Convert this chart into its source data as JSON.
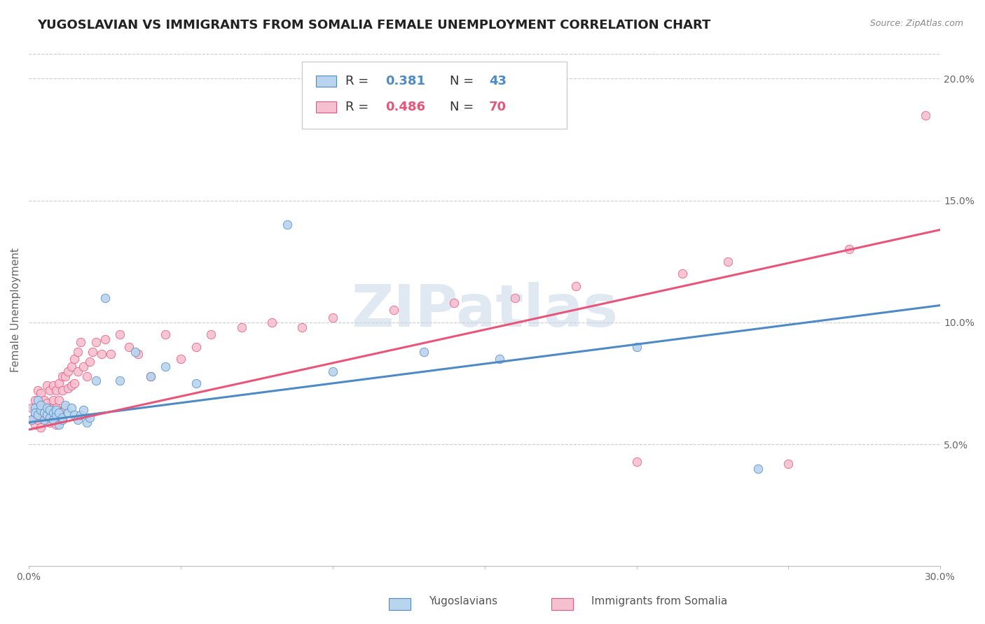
{
  "title": "YUGOSLAVIAN VS IMMIGRANTS FROM SOMALIA FEMALE UNEMPLOYMENT CORRELATION CHART",
  "source": "Source: ZipAtlas.com",
  "ylabel": "Female Unemployment",
  "xlim": [
    0.0,
    0.3
  ],
  "ylim": [
    0.0,
    0.21
  ],
  "x_ticks": [
    0.0,
    0.05,
    0.1,
    0.15,
    0.2,
    0.25,
    0.3
  ],
  "y_ticks_right": [
    0.05,
    0.1,
    0.15,
    0.2
  ],
  "y_tick_labels_right": [
    "5.0%",
    "10.0%",
    "15.0%",
    "20.0%"
  ],
  "watermark": "ZIPatlas",
  "bottom_labels": [
    "Yugoslavians",
    "Immigrants from Somalia"
  ],
  "blue_color": "#4e8ac4",
  "pink_color": "#e8557a",
  "blue_scatter_color": "#b8d4ee",
  "pink_scatter_color": "#f5c0d0",
  "blue_scatter_x": [
    0.001,
    0.002,
    0.002,
    0.003,
    0.003,
    0.004,
    0.004,
    0.005,
    0.005,
    0.006,
    0.006,
    0.007,
    0.007,
    0.008,
    0.008,
    0.009,
    0.009,
    0.01,
    0.01,
    0.011,
    0.011,
    0.012,
    0.013,
    0.014,
    0.015,
    0.016,
    0.017,
    0.018,
    0.019,
    0.02,
    0.022,
    0.025,
    0.03,
    0.035,
    0.04,
    0.045,
    0.055,
    0.085,
    0.1,
    0.13,
    0.155,
    0.2,
    0.24
  ],
  "blue_scatter_y": [
    0.06,
    0.065,
    0.063,
    0.068,
    0.062,
    0.064,
    0.066,
    0.06,
    0.063,
    0.062,
    0.065,
    0.061,
    0.064,
    0.063,
    0.06,
    0.062,
    0.064,
    0.063,
    0.058,
    0.06,
    0.061,
    0.066,
    0.063,
    0.065,
    0.062,
    0.06,
    0.062,
    0.064,
    0.059,
    0.061,
    0.076,
    0.11,
    0.076,
    0.088,
    0.078,
    0.082,
    0.075,
    0.14,
    0.08,
    0.088,
    0.085,
    0.09,
    0.04
  ],
  "pink_scatter_x": [
    0.001,
    0.001,
    0.002,
    0.002,
    0.002,
    0.003,
    0.003,
    0.003,
    0.004,
    0.004,
    0.004,
    0.005,
    0.005,
    0.006,
    0.006,
    0.006,
    0.007,
    0.007,
    0.007,
    0.008,
    0.008,
    0.009,
    0.009,
    0.009,
    0.01,
    0.01,
    0.01,
    0.011,
    0.011,
    0.012,
    0.012,
    0.013,
    0.013,
    0.014,
    0.014,
    0.015,
    0.015,
    0.016,
    0.016,
    0.017,
    0.018,
    0.019,
    0.02,
    0.021,
    0.022,
    0.024,
    0.025,
    0.027,
    0.03,
    0.033,
    0.036,
    0.04,
    0.045,
    0.05,
    0.055,
    0.06,
    0.07,
    0.08,
    0.09,
    0.1,
    0.12,
    0.14,
    0.16,
    0.18,
    0.2,
    0.215,
    0.23,
    0.25,
    0.27,
    0.295
  ],
  "pink_scatter_y": [
    0.065,
    0.06,
    0.068,
    0.062,
    0.058,
    0.072,
    0.065,
    0.06,
    0.071,
    0.063,
    0.057,
    0.068,
    0.062,
    0.074,
    0.067,
    0.06,
    0.072,
    0.065,
    0.059,
    0.074,
    0.068,
    0.072,
    0.065,
    0.058,
    0.075,
    0.068,
    0.062,
    0.078,
    0.072,
    0.078,
    0.065,
    0.08,
    0.073,
    0.082,
    0.074,
    0.085,
    0.075,
    0.088,
    0.08,
    0.092,
    0.082,
    0.078,
    0.084,
    0.088,
    0.092,
    0.087,
    0.093,
    0.087,
    0.095,
    0.09,
    0.087,
    0.078,
    0.095,
    0.085,
    0.09,
    0.095,
    0.098,
    0.1,
    0.098,
    0.102,
    0.105,
    0.108,
    0.11,
    0.115,
    0.043,
    0.12,
    0.125,
    0.042,
    0.13,
    0.185
  ],
  "blue_line": {
    "x0": 0.0,
    "x1": 0.3,
    "y0": 0.059,
    "y1": 0.107
  },
  "pink_line": {
    "x0": 0.0,
    "x1": 0.3,
    "y0": 0.056,
    "y1": 0.138
  },
  "background_color": "#ffffff",
  "grid_color": "#cccccc",
  "title_fontsize": 13,
  "axis_fontsize": 11,
  "tick_fontsize": 10,
  "legend_R1": "0.381",
  "legend_N1": "43",
  "legend_R2": "0.486",
  "legend_N2": "70"
}
